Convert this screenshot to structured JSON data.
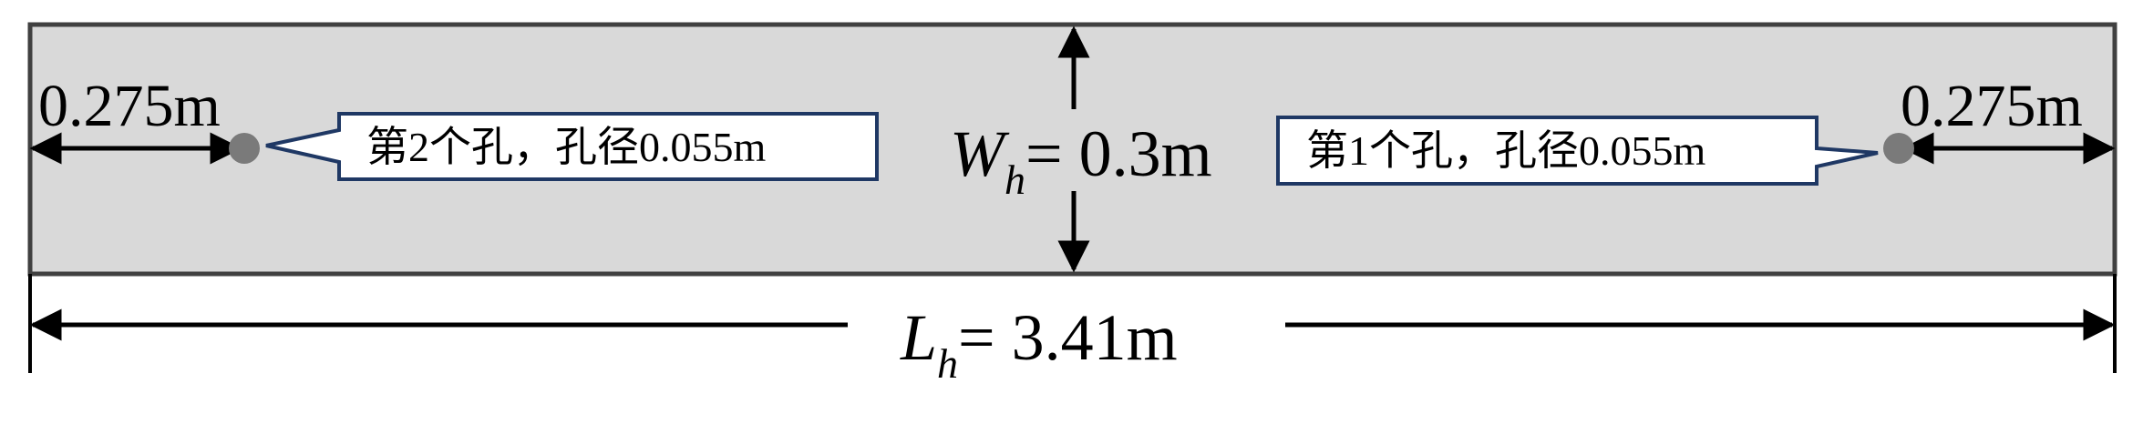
{
  "colors": {
    "panel_fill": "#d9d9d9",
    "panel_stroke": "#404040",
    "hole": "#7a7a7a",
    "callout_stroke": "#1f3864",
    "callout_fill": "#ffffff",
    "line": "#000000"
  },
  "left_offset": {
    "value": "0.275m"
  },
  "right_offset": {
    "value": "0.275m"
  },
  "width_label": {
    "symbol": "W",
    "subscript": "h",
    "value": "= 0.3m"
  },
  "length_label": {
    "symbol": "L",
    "subscript": "h",
    "value": "= 3.41m"
  },
  "hole_left": {
    "callout": "第2个孔，孔径0.055m"
  },
  "hole_right": {
    "callout": "第1个孔，孔径0.055m"
  }
}
